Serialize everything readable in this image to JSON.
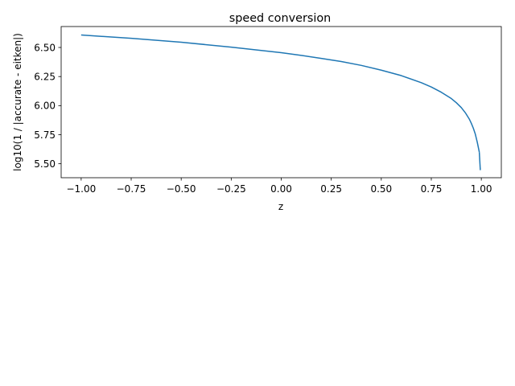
{
  "chart_data": {
    "type": "line",
    "title": "speed conversion",
    "xlabel": "z",
    "ylabel": "log10(1 / |accurate - eitken|)",
    "xlim": [
      -1.1,
      1.1
    ],
    "ylim": [
      5.38,
      6.68
    ],
    "xticks": [
      -1.0,
      -0.75,
      -0.5,
      -0.25,
      0.0,
      0.25,
      0.5,
      0.75,
      1.0
    ],
    "xtick_labels": [
      "−1.00",
      "−0.75",
      "−0.50",
      "−0.25",
      "0.00",
      "0.25",
      "0.50",
      "0.75",
      "1.00"
    ],
    "yticks": [
      5.5,
      5.75,
      6.0,
      6.25,
      6.5
    ],
    "ytick_labels": [
      "5.50",
      "5.75",
      "6.00",
      "6.25",
      "6.50"
    ],
    "grid": false,
    "series": [
      {
        "color": "#1f77b4",
        "x": [
          -1.0,
          -0.75,
          -0.5,
          -0.25,
          0.0,
          0.1,
          0.2,
          0.3,
          0.4,
          0.5,
          0.6,
          0.7,
          0.75,
          0.8,
          0.85,
          0.875,
          0.9,
          0.92,
          0.94,
          0.95,
          0.96,
          0.97,
          0.98,
          0.99
        ],
        "y": [
          6.607,
          6.579,
          6.545,
          6.503,
          6.455,
          6.432,
          6.406,
          6.379,
          6.346,
          6.305,
          6.258,
          6.197,
          6.16,
          6.115,
          6.061,
          6.025,
          5.983,
          5.939,
          5.884,
          5.848,
          5.806,
          5.755,
          5.684,
          5.6
        ]
      },
      {
        "color": "#1f77b4",
        "x": [
          0.99,
          0.995
        ],
        "y": [
          5.6,
          5.445
        ]
      }
    ]
  }
}
